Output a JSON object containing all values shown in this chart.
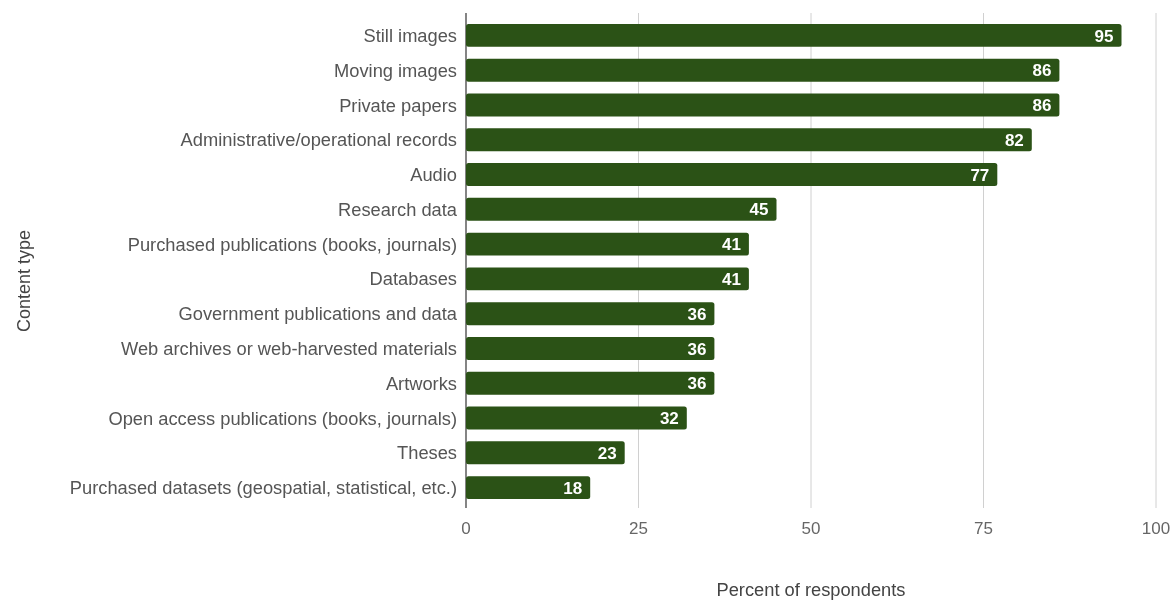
{
  "chart_data": {
    "type": "bar",
    "orientation": "horizontal",
    "xlabel": "Percent of respondents",
    "ylabel": "Content type",
    "categories": [
      "Still images",
      "Moving images",
      "Private papers",
      "Administrative/operational records",
      "Audio",
      "Research data",
      "Purchased publications (books, journals)",
      "Databases",
      "Government publications and data",
      "Web archives or web-harvested materials",
      "Artworks",
      "Open access publications (books, journals)",
      "Theses",
      "Purchased datasets (geospatial, statistical, etc.)"
    ],
    "values": [
      95,
      86,
      86,
      82,
      77,
      45,
      41,
      41,
      36,
      36,
      36,
      32,
      23,
      18
    ],
    "color": "#2b5216",
    "xlim": [
      0,
      100
    ],
    "xticks": [
      0,
      25,
      50,
      75,
      100
    ],
    "grid": "x",
    "data_labels": true
  }
}
